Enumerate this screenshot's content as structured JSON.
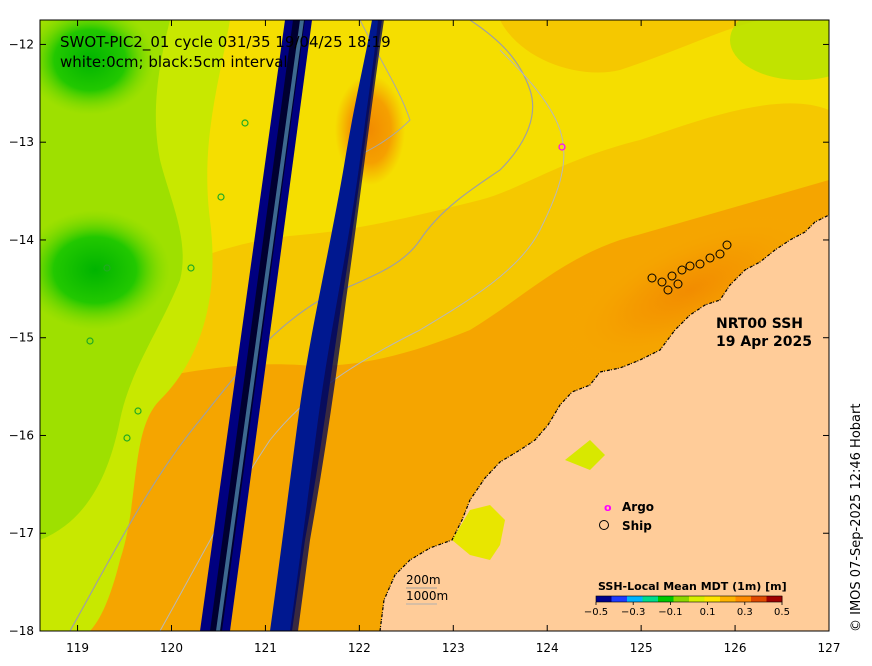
{
  "title": {
    "line1": "SWOT-PIC2_01 cycle 031/35 19/04/25 18:19",
    "line2": "white:0cm; black:5cm interval"
  },
  "product": {
    "name": "NRT00 SSH",
    "date": "19 Apr 2025"
  },
  "credit": "© IMOS 07-Sep-2025 12:46 Hobart",
  "legend": {
    "argo": "Argo",
    "ship": "Ship",
    "argo_color": "#ff00ff",
    "ship_color": "#000000"
  },
  "depth_contours": {
    "shallow": "200m",
    "deep": "1000m"
  },
  "colorbar": {
    "title": "SSH-Local Mean MDT (1m) [m]",
    "ticks": [
      "−0.5",
      "−0.3",
      "−0.1",
      "0.1",
      "0.3",
      "0.5"
    ],
    "tick_values": [
      -0.5,
      -0.3,
      -0.1,
      0.1,
      0.3,
      0.5
    ],
    "colors": [
      "#00008b",
      "#1e3cff",
      "#00b4ff",
      "#00dc8c",
      "#00c800",
      "#8cd800",
      "#d8f000",
      "#ffe600",
      "#ffb400",
      "#ff8c00",
      "#e04a00",
      "#a00000"
    ]
  },
  "axes": {
    "x_ticks": [
      "119",
      "120",
      "121",
      "122",
      "123",
      "124",
      "125",
      "126",
      "127"
    ],
    "x_values": [
      119,
      120,
      121,
      122,
      123,
      124,
      125,
      126,
      127
    ],
    "y_ticks": [
      "−12",
      "−13",
      "−14",
      "−15",
      "−16",
      "−17",
      "−18"
    ],
    "y_values": [
      -12,
      -13,
      -14,
      -15,
      -16,
      -17,
      -18
    ],
    "lon_range": [
      118.6,
      127
    ],
    "lat_range": [
      -11.75,
      -18
    ]
  },
  "colors": {
    "land": "#ffcc99",
    "swath_dark": "#000080",
    "ssh_orange": "#ffa500",
    "ssh_yellow": "#ffd700",
    "ssh_green": "#00d000"
  }
}
